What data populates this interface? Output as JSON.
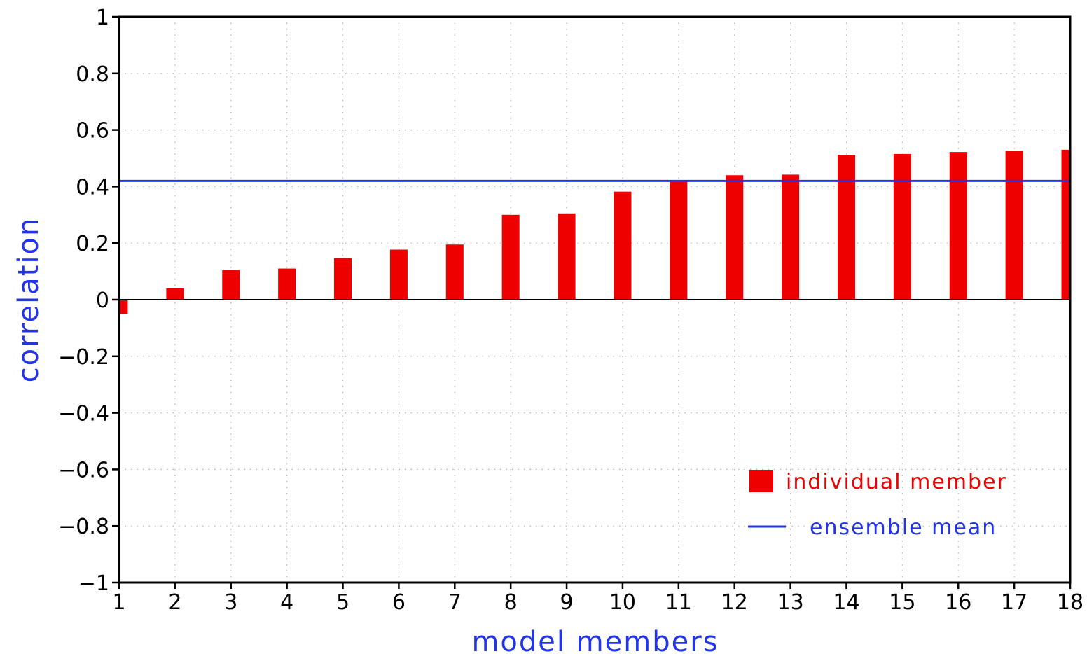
{
  "chart_data": {
    "type": "bar",
    "title": "",
    "xlabel": "model members",
    "ylabel": "correlation",
    "categories": [
      "1",
      "2",
      "3",
      "4",
      "5",
      "6",
      "7",
      "8",
      "9",
      "10",
      "11",
      "12",
      "13",
      "14",
      "15",
      "16",
      "17",
      "18"
    ],
    "xticks": [
      "1",
      "2",
      "3",
      "4",
      "5",
      "6",
      "7",
      "8",
      "9",
      "10",
      "11",
      "12",
      "13",
      "14",
      "15",
      "16",
      "17",
      "18"
    ],
    "yticks": [
      "−1",
      "−0.8",
      "−0.6",
      "−0.4",
      "−0.2",
      "0",
      "0.2",
      "0.4",
      "0.6",
      "0.8",
      "1"
    ],
    "ylim": [
      -1,
      1
    ],
    "grid": true,
    "series": [
      {
        "name": "individual member",
        "color": "#ee0000",
        "values": [
          -0.05,
          0.04,
          0.105,
          0.11,
          0.147,
          0.177,
          0.195,
          0.3,
          0.305,
          0.382,
          0.42,
          0.44,
          0.442,
          0.512,
          0.515,
          0.522,
          0.526,
          0.53
        ]
      }
    ],
    "reference_lines": [
      {
        "name": "ensemble mean",
        "color": "#2233ee",
        "value": 0.42
      }
    ],
    "legend": {
      "position": "bottom-right",
      "bar_label": "individual member",
      "line_label": "ensemble mean"
    }
  }
}
